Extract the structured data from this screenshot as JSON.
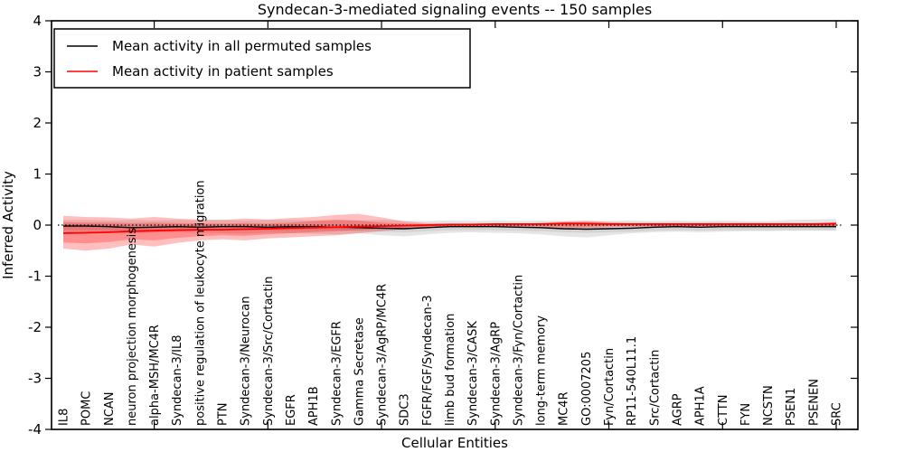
{
  "legend": {
    "items": [
      {
        "label": "Mean activity in all permuted samples",
        "color": "#000000"
      },
      {
        "label": "Mean activity in patient samples",
        "color": "#ff0000"
      }
    ]
  },
  "chart_data": {
    "type": "line",
    "title": "Syndecan-3-mediated signaling events -- 150 samples",
    "xlabel": "Cellular Entities",
    "ylabel": "Inferred Activity",
    "ylim": [
      -4,
      4
    ],
    "yticks": [
      4,
      3,
      2,
      1,
      0,
      -1,
      -2,
      -3,
      -4
    ],
    "grid": false,
    "legend_position": "upper left",
    "zero_line": {
      "y": 0,
      "style": "dotted",
      "color": "#000000"
    },
    "categories": [
      "IL8",
      "POMC",
      "NCAN",
      "neuron projection morphogenesis",
      "alpha-MSH/MC4R",
      "Syndecan-3/IL8",
      "positive regulation of leukocyte migration",
      "PTN",
      "Syndecan-3/Neurocan",
      "Syndecan-3/Src/Cortactin",
      "EGFR",
      "APH1B",
      "Syndecan-3/EGFR",
      "Gamma Secretase",
      "Syndecan-3/AgRP/MC4R",
      "SDC3",
      "FGFR/FGF/Syndecan-3",
      "limb bud formation",
      "Syndecan-3/CASK",
      "Syndecan-3/AgRP",
      "Syndecan-3/Fyn/Cortactin",
      "long-term memory",
      "MC4R",
      "GO:0007205",
      "Fyn/Cortactin",
      "RP11-540L11.1",
      "Src/Cortactin",
      "AGRP",
      "APH1A",
      "CTTN",
      "FYN",
      "NCSTN",
      "PSEN1",
      "PSENEN",
      "SRC"
    ],
    "series": [
      {
        "name": "Mean activity in all permuted samples",
        "color": "#000000",
        "values": [
          -0.02,
          -0.02,
          -0.03,
          -0.05,
          -0.04,
          -0.03,
          -0.04,
          -0.03,
          -0.03,
          -0.04,
          -0.03,
          -0.03,
          -0.04,
          -0.05,
          -0.06,
          -0.07,
          -0.05,
          -0.03,
          -0.03,
          -0.03,
          -0.04,
          -0.05,
          -0.07,
          -0.08,
          -0.07,
          -0.06,
          -0.04,
          -0.03,
          -0.04,
          -0.03,
          -0.03,
          -0.03,
          -0.03,
          -0.03,
          -0.03
        ]
      },
      {
        "name": "Mean activity in patient samples",
        "color": "#ff0000",
        "values": [
          -0.16,
          -0.15,
          -0.14,
          -0.12,
          -0.11,
          -0.1,
          -0.09,
          -0.09,
          -0.08,
          -0.07,
          -0.06,
          -0.05,
          -0.04,
          -0.03,
          -0.02,
          -0.01,
          0.0,
          0.01,
          0.01,
          0.02,
          0.02,
          0.02,
          0.03,
          0.03,
          0.02,
          0.02,
          0.02,
          0.02,
          0.02,
          0.02,
          0.02,
          0.02,
          0.02,
          0.02,
          0.03
        ]
      }
    ],
    "bands": [
      {
        "name": "permuted-range-outer",
        "color": "#aaaaaa",
        "opacity": 0.3,
        "hi": [
          0.1,
          0.1,
          0.09,
          0.1,
          0.09,
          0.1,
          0.09,
          0.1,
          0.09,
          0.1,
          0.1,
          0.09,
          0.1,
          0.09,
          0.1,
          0.09,
          0.08,
          0.09,
          0.08,
          0.09,
          0.08,
          0.09,
          0.08,
          0.09,
          0.08,
          0.09,
          0.08,
          0.09,
          0.08,
          0.09,
          0.08,
          0.08,
          0.1,
          0.11,
          0.12
        ],
        "lo": [
          -0.14,
          -0.15,
          -0.14,
          -0.16,
          -0.15,
          -0.14,
          -0.15,
          -0.16,
          -0.17,
          -0.15,
          -0.16,
          -0.17,
          -0.18,
          -0.16,
          -0.2,
          -0.22,
          -0.18,
          -0.15,
          -0.14,
          -0.15,
          -0.16,
          -0.18,
          -0.22,
          -0.24,
          -0.2,
          -0.16,
          -0.14,
          -0.13,
          -0.14,
          -0.13,
          -0.12,
          -0.12,
          -0.11,
          -0.11,
          -0.11
        ]
      },
      {
        "name": "permuted-range-inner",
        "color": "#aaaaaa",
        "opacity": 0.3,
        "hi": [
          0.02,
          0.02,
          0.01,
          -0.01,
          0.0,
          0.01,
          0.0,
          0.01,
          0.01,
          0.0,
          0.01,
          0.01,
          0.0,
          -0.01,
          -0.02,
          -0.03,
          -0.01,
          0.01,
          0.01,
          0.01,
          0.0,
          -0.01,
          -0.03,
          -0.04,
          -0.03,
          -0.02,
          0.0,
          0.01,
          0.0,
          0.01,
          0.01,
          0.01,
          0.01,
          0.01,
          0.01
        ],
        "lo": [
          -0.09,
          -0.09,
          -0.1,
          -0.12,
          -0.11,
          -0.1,
          -0.11,
          -0.1,
          -0.1,
          -0.11,
          -0.1,
          -0.1,
          -0.11,
          -0.12,
          -0.13,
          -0.14,
          -0.12,
          -0.1,
          -0.1,
          -0.1,
          -0.11,
          -0.12,
          -0.14,
          -0.15,
          -0.14,
          -0.13,
          -0.11,
          -0.1,
          -0.11,
          -0.1,
          -0.1,
          -0.1,
          -0.1,
          -0.1,
          -0.1
        ]
      },
      {
        "name": "patient-range-outer",
        "color": "#ff0000",
        "opacity": 0.25,
        "hi": [
          0.18,
          0.16,
          0.15,
          0.13,
          0.16,
          0.13,
          0.11,
          0.1,
          0.13,
          0.11,
          0.14,
          0.16,
          0.2,
          0.22,
          0.15,
          0.07,
          0.04,
          0.03,
          0.03,
          0.03,
          0.03,
          0.04,
          0.07,
          0.08,
          0.06,
          0.04,
          0.04,
          0.04,
          0.04,
          0.04,
          0.04,
          0.04,
          0.04,
          0.04,
          0.05
        ],
        "lo": [
          -0.46,
          -0.5,
          -0.46,
          -0.38,
          -0.42,
          -0.35,
          -0.3,
          -0.28,
          -0.3,
          -0.26,
          -0.24,
          -0.22,
          -0.2,
          -0.16,
          -0.12,
          -0.08,
          -0.05,
          -0.04,
          -0.03,
          -0.03,
          -0.03,
          -0.04,
          -0.06,
          -0.06,
          -0.04,
          -0.03,
          -0.03,
          -0.03,
          -0.03,
          -0.03,
          -0.03,
          -0.03,
          -0.03,
          -0.03,
          -0.03
        ]
      },
      {
        "name": "patient-range-inner",
        "color": "#ff0000",
        "opacity": 0.25,
        "hi": [
          0.06,
          0.05,
          0.05,
          0.04,
          0.05,
          0.04,
          0.03,
          0.03,
          0.04,
          0.03,
          0.05,
          0.08,
          0.1,
          0.09,
          0.05,
          0.03,
          0.02,
          0.02,
          0.02,
          0.02,
          0.03,
          0.03,
          0.05,
          0.05,
          0.04,
          0.03,
          0.03,
          0.03,
          0.03,
          0.03,
          0.03,
          0.03,
          0.03,
          0.03,
          0.03
        ],
        "lo": [
          -0.34,
          -0.36,
          -0.33,
          -0.28,
          -0.3,
          -0.25,
          -0.22,
          -0.2,
          -0.21,
          -0.18,
          -0.16,
          -0.14,
          -0.12,
          -0.1,
          -0.08,
          -0.05,
          -0.03,
          -0.02,
          -0.02,
          -0.02,
          -0.02,
          -0.02,
          -0.03,
          -0.03,
          -0.02,
          -0.02,
          -0.02,
          -0.02,
          -0.02,
          -0.02,
          -0.02,
          -0.02,
          -0.02,
          -0.02,
          -0.02
        ]
      }
    ]
  }
}
